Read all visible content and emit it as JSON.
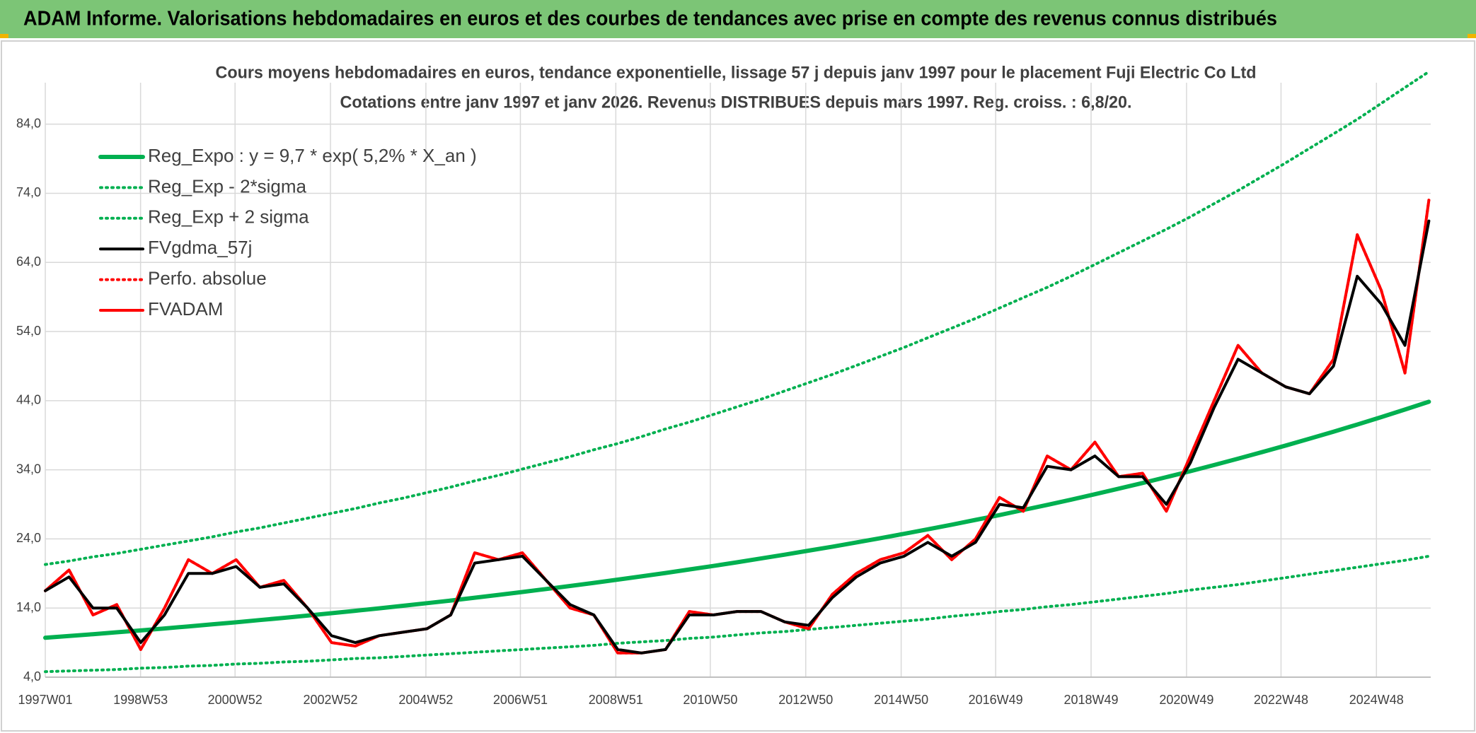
{
  "header": {
    "title": "ADAM Informe. Valorisations hebdomadaires en euros et des courbes de tendances avec prise en compte des revenus connus distribués"
  },
  "chart_data": {
    "type": "line",
    "title": "Cours moyens hebdomadaires en euros, tendance exponentielle, lissage 57 j depuis janv 1997 pour le placement Fuji Electric Co Ltd",
    "subtitle": "Cotations entre janv 1997 et janv 2026. Revenus DISTRIBUES depuis mars 1997. Reg. croiss. : 6,8/20.",
    "x": [
      "1997W01",
      "1997W27",
      "1998W01",
      "1998W27",
      "1999W01",
      "1999W27",
      "2000W01",
      "2000W27",
      "2001W01",
      "2001W27",
      "2002W01",
      "2002W27",
      "2003W01",
      "2003W27",
      "2004W01",
      "2004W27",
      "2005W01",
      "2005W27",
      "2006W01",
      "2006W27",
      "2007W01",
      "2007W27",
      "2008W01",
      "2008W27",
      "2009W01",
      "2009W27",
      "2010W01",
      "2010W27",
      "2011W01",
      "2011W27",
      "2012W01",
      "2012W27",
      "2013W01",
      "2013W27",
      "2014W01",
      "2014W27",
      "2015W01",
      "2015W27",
      "2016W01",
      "2016W27",
      "2017W01",
      "2017W27",
      "2018W01",
      "2018W27",
      "2019W01",
      "2019W27",
      "2020W01",
      "2020W27",
      "2021W01",
      "2021W27",
      "2022W01",
      "2022W27",
      "2023W01",
      "2023W27",
      "2024W01",
      "2024W27",
      "2025W01",
      "2025W27",
      "2026W01"
    ],
    "xlim": [
      "1997W01",
      "2026W03"
    ],
    "xticks": [
      "1997W01",
      "1998W53",
      "2000W52",
      "2002W52",
      "2004W52",
      "2006W51",
      "2008W51",
      "2010W50",
      "2012W50",
      "2014W50",
      "2016W49",
      "2018W49",
      "2020W49",
      "2022W48",
      "2024W48"
    ],
    "ylim": [
      4,
      90
    ],
    "yticks": [
      {
        "value": 4,
        "label": "4,0"
      },
      {
        "value": 14,
        "label": "14,0"
      },
      {
        "value": 24,
        "label": "24,0"
      },
      {
        "value": 34,
        "label": "34,0"
      },
      {
        "value": 44,
        "label": "44,0"
      },
      {
        "value": 54,
        "label": "54,0"
      },
      {
        "value": 64,
        "label": "64,0"
      },
      {
        "value": 74,
        "label": "74,0"
      },
      {
        "value": 84,
        "label": "84,0"
      }
    ],
    "grid": true,
    "legend": "top-left",
    "series": [
      {
        "name": "Reg_Expo : y = 9,7 * exp( 5,2% *  X_an )",
        "color": "#00b050",
        "style": "thick",
        "values": [
          9.7,
          9.96,
          10.22,
          10.49,
          10.76,
          11.05,
          11.34,
          11.64,
          11.94,
          12.26,
          12.58,
          12.91,
          13.25,
          13.6,
          13.96,
          14.33,
          14.71,
          15.09,
          15.49,
          15.9,
          16.32,
          16.75,
          17.19,
          17.64,
          18.11,
          18.58,
          19.07,
          19.58,
          20.09,
          20.62,
          21.17,
          21.72,
          22.3,
          22.88,
          23.49,
          24.1,
          24.74,
          25.39,
          26.06,
          26.75,
          27.45,
          28.18,
          28.92,
          29.68,
          30.46,
          31.27,
          32.09,
          32.94,
          33.8,
          34.69,
          35.61,
          36.55,
          37.51,
          38.5,
          39.51,
          40.55,
          41.62,
          42.72,
          43.84
        ]
      },
      {
        "name": "Reg_Exp - 2*sigma",
        "color": "#00b050",
        "style": "dotted",
        "values": [
          4.8,
          4.9,
          5.0,
          5.1,
          5.3,
          5.4,
          5.6,
          5.7,
          5.9,
          6.0,
          6.2,
          6.3,
          6.5,
          6.7,
          6.8,
          7.0,
          7.2,
          7.4,
          7.6,
          7.8,
          8.0,
          8.2,
          8.4,
          8.6,
          8.9,
          9.1,
          9.3,
          9.6,
          9.8,
          10.1,
          10.4,
          10.6,
          10.9,
          11.2,
          11.5,
          11.8,
          12.1,
          12.4,
          12.8,
          13.1,
          13.5,
          13.8,
          14.2,
          14.5,
          14.9,
          15.3,
          15.7,
          16.1,
          16.6,
          17.0,
          17.4,
          17.9,
          18.4,
          18.9,
          19.4,
          19.9,
          20.4,
          20.9,
          21.5
        ]
      },
      {
        "name": "Reg_Exp + 2 sigma",
        "color": "#00b050",
        "style": "dotted",
        "values": [
          20.3,
          20.8,
          21.4,
          21.9,
          22.5,
          23.1,
          23.7,
          24.3,
          25.0,
          25.6,
          26.3,
          27.0,
          27.7,
          28.4,
          29.2,
          29.9,
          30.7,
          31.5,
          32.4,
          33.2,
          34.1,
          35.0,
          35.9,
          36.9,
          37.8,
          38.8,
          39.9,
          40.9,
          42.0,
          43.1,
          44.2,
          45.4,
          46.6,
          47.8,
          49.1,
          50.4,
          51.7,
          53.1,
          54.5,
          55.9,
          57.4,
          58.9,
          60.4,
          62.0,
          63.7,
          65.4,
          67.1,
          68.8,
          70.6,
          72.5,
          74.4,
          76.4,
          78.4,
          80.5,
          82.6,
          84.7,
          87.0,
          89.3,
          91.6
        ]
      },
      {
        "name": "FVgdma_57j",
        "color": "#000000",
        "style": "solid",
        "values": [
          16.5,
          18.5,
          14,
          14,
          9,
          13,
          19,
          19,
          20,
          17,
          17.5,
          14,
          10,
          9,
          10,
          10.5,
          11,
          13,
          20.5,
          21,
          21.5,
          18,
          14.5,
          13,
          8,
          7.5,
          8,
          13,
          13,
          13.5,
          13.5,
          12,
          11.5,
          15.5,
          18.5,
          20.5,
          21.5,
          23.5,
          21.5,
          23.5,
          29,
          28.5,
          34.5,
          34,
          36,
          33,
          33,
          29,
          35,
          43,
          50,
          48,
          46,
          45,
          49,
          62,
          58,
          52,
          70
        ]
      },
      {
        "name": "Perfo. absolue",
        "color": "#ff0000",
        "style": "dotted",
        "values": [
          16.5,
          19.5,
          13,
          14.5,
          8,
          14,
          21,
          19,
          21,
          17,
          18,
          14,
          9,
          8.5,
          10,
          10.5,
          11,
          13,
          22,
          21,
          22,
          18,
          14,
          13,
          7.5,
          7.5,
          8,
          13.5,
          13,
          13.5,
          13.5,
          12,
          11,
          16,
          19,
          21,
          22,
          24.5,
          21,
          24,
          30,
          28,
          36,
          34,
          38,
          33,
          33.5,
          28,
          36,
          44,
          52,
          48,
          46,
          45,
          50,
          68,
          60,
          48,
          73
        ]
      },
      {
        "name": "FVADAM",
        "color": "#ff0000",
        "style": "solid",
        "values": [
          16.5,
          19.5,
          13,
          14.5,
          8,
          14,
          21,
          19,
          21,
          17,
          18,
          14,
          9,
          8.5,
          10,
          10.5,
          11,
          13,
          22,
          21,
          22,
          18,
          14,
          13,
          7.5,
          7.5,
          8,
          13.5,
          13,
          13.5,
          13.5,
          12,
          11,
          16,
          19,
          21,
          22,
          24.5,
          21,
          24,
          30,
          28,
          36,
          34,
          38,
          33,
          33.5,
          28,
          36,
          44,
          52,
          48,
          46,
          45,
          50,
          68,
          60,
          48,
          73
        ]
      }
    ]
  }
}
